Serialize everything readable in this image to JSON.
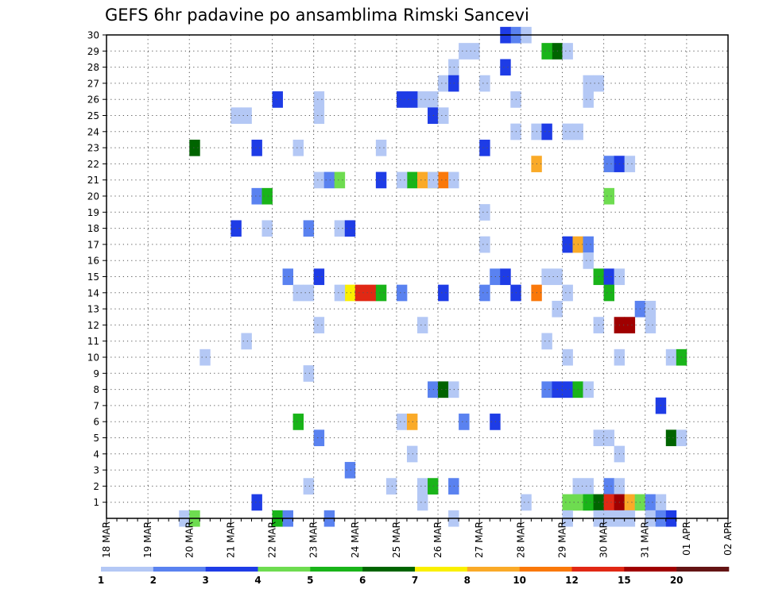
{
  "chart_data": {
    "type": "heatmap",
    "title": "GEFS 6hr padavine po ansamblima Rimski Sancevi",
    "xlabel": "",
    "ylabel": "",
    "x_steps_per_day": 4,
    "x_tick_labels": [
      "18 MAR",
      "19 MAR",
      "20 MAR",
      "21 MAR",
      "22 MAR",
      "23 MAR",
      "24 MAR",
      "25 MAR",
      "26 MAR",
      "27 MAR",
      "28 MAR",
      "29 MAR",
      "30 MAR",
      "31 MAR",
      "01 APR",
      "02 APR"
    ],
    "y_tick_labels": [
      "1",
      "2",
      "3",
      "4",
      "5",
      "6",
      "7",
      "8",
      "9",
      "10",
      "11",
      "12",
      "13",
      "14",
      "15",
      "16",
      "17",
      "18",
      "19",
      "20",
      "21",
      "22",
      "23",
      "24",
      "25",
      "26",
      "27",
      "28",
      "29",
      "30"
    ],
    "y_range": [
      0,
      30
    ],
    "grid": true,
    "legend_thresholds": [
      "1",
      "2",
      "3",
      "4",
      "5",
      "6",
      "7",
      "8",
      "10",
      "12",
      "15",
      "20"
    ],
    "legend_colors": [
      "#b4c8f5",
      "#5a82f0",
      "#1e3ce6",
      "#6edc50",
      "#19b419",
      "#006400",
      "#faf000",
      "#faaa28",
      "#fa780a",
      "#e12814",
      "#a00000",
      "#641414"
    ],
    "cells": [
      [
        27.75,
        30,
        1
      ],
      [
        28,
        30,
        0
      ],
      [
        27.5,
        30,
        2
      ],
      [
        26.5,
        29,
        0
      ],
      [
        28.75,
        29,
        5
      ],
      [
        29,
        29,
        0
      ],
      [
        26.75,
        29,
        0
      ],
      [
        28.5,
        29,
        4
      ],
      [
        26.25,
        28,
        0
      ],
      [
        27.5,
        28,
        2
      ],
      [
        26,
        27,
        0
      ],
      [
        27,
        27,
        0
      ],
      [
        26.25,
        27,
        2
      ],
      [
        29.75,
        27,
        0
      ],
      [
        29.5,
        27,
        0
      ],
      [
        25.75,
        26,
        0
      ],
      [
        25.5,
        26,
        0
      ],
      [
        25.25,
        26,
        2
      ],
      [
        25,
        26,
        2
      ],
      [
        23,
        26,
        0
      ],
      [
        22,
        26,
        2
      ],
      [
        27.75,
        26,
        0
      ],
      [
        29.5,
        26,
        0
      ],
      [
        21,
        25,
        0
      ],
      [
        25.75,
        25,
        2
      ],
      [
        26,
        25,
        0
      ],
      [
        21.25,
        25,
        0
      ],
      [
        23,
        25,
        0
      ],
      [
        27.75,
        24,
        0
      ],
      [
        28.25,
        24,
        0
      ],
      [
        28.5,
        24,
        2
      ],
      [
        29,
        24,
        0
      ],
      [
        29.25,
        24,
        0
      ],
      [
        24.5,
        23,
        0
      ],
      [
        20,
        23,
        5
      ],
      [
        21.5,
        23,
        2
      ],
      [
        22.5,
        23,
        0
      ],
      [
        27,
        23,
        2
      ],
      [
        28.25,
        22,
        7
      ],
      [
        30,
        22,
        1
      ],
      [
        30.25,
        22,
        2
      ],
      [
        30.5,
        22,
        0
      ],
      [
        24.5,
        21,
        2
      ],
      [
        25.25,
        21,
        4
      ],
      [
        25.5,
        21,
        7
      ],
      [
        25.75,
        21,
        6
      ],
      [
        26,
        21,
        8
      ],
      [
        26.25,
        21,
        0
      ],
      [
        23,
        21,
        0
      ],
      [
        23.25,
        21,
        1
      ],
      [
        23.5,
        21,
        3
      ],
      [
        25,
        21,
        0
      ],
      [
        25.75,
        21,
        0
      ],
      [
        21.5,
        20,
        1
      ],
      [
        21.75,
        20,
        4
      ],
      [
        30,
        20,
        3
      ],
      [
        27,
        19,
        0
      ],
      [
        21,
        18,
        2
      ],
      [
        21.75,
        18,
        0
      ],
      [
        22.75,
        18,
        1
      ],
      [
        23.5,
        18,
        0
      ],
      [
        23.75,
        18,
        2
      ],
      [
        29,
        17,
        2
      ],
      [
        29.25,
        17,
        7
      ],
      [
        29.5,
        17,
        1
      ],
      [
        27,
        17,
        0
      ],
      [
        29.5,
        16,
        0
      ],
      [
        27.25,
        15,
        1
      ],
      [
        27.5,
        15,
        2
      ],
      [
        29.75,
        15,
        4
      ],
      [
        30,
        15,
        2
      ],
      [
        30.25,
        15,
        0
      ],
      [
        28.5,
        15,
        0
      ],
      [
        28.75,
        15,
        0
      ],
      [
        22.25,
        15,
        1
      ],
      [
        23,
        15,
        2
      ],
      [
        23.75,
        14,
        6
      ],
      [
        24,
        14,
        9
      ],
      [
        24.25,
        14,
        9
      ],
      [
        24.5,
        14,
        4
      ],
      [
        25,
        14,
        1
      ],
      [
        26,
        14,
        2
      ],
      [
        27,
        14,
        1
      ],
      [
        27.75,
        14,
        2
      ],
      [
        28.25,
        14,
        8
      ],
      [
        29,
        14,
        0
      ],
      [
        30,
        14,
        4
      ],
      [
        23.5,
        14,
        0
      ],
      [
        22.5,
        14,
        0
      ],
      [
        22.75,
        14,
        0
      ],
      [
        28.75,
        13,
        0
      ],
      [
        30.25,
        12,
        10
      ],
      [
        30.5,
        12,
        10
      ],
      [
        31,
        12,
        0
      ],
      [
        30.75,
        13,
        1
      ],
      [
        31,
        13,
        0
      ],
      [
        23,
        12,
        0
      ],
      [
        25.5,
        12,
        0
      ],
      [
        29.75,
        12,
        0
      ],
      [
        21.25,
        11,
        0
      ],
      [
        28.5,
        11,
        0
      ],
      [
        29,
        10,
        0
      ],
      [
        31.5,
        10,
        0
      ],
      [
        31.75,
        10,
        4
      ],
      [
        30.25,
        10,
        0
      ],
      [
        20.25,
        10,
        0
      ],
      [
        22.75,
        9,
        0
      ],
      [
        25.75,
        8,
        1
      ],
      [
        26,
        8,
        5
      ],
      [
        26.25,
        8,
        0
      ],
      [
        28.5,
        8,
        1
      ],
      [
        28.75,
        8,
        2
      ],
      [
        29,
        8,
        2
      ],
      [
        29.25,
        8,
        4
      ],
      [
        29.5,
        8,
        0
      ],
      [
        31.25,
        7,
        2
      ],
      [
        22.5,
        6,
        4
      ],
      [
        25,
        6,
        0
      ],
      [
        25.25,
        6,
        7
      ],
      [
        26.5,
        6,
        1
      ],
      [
        27.25,
        6,
        2
      ],
      [
        23,
        5,
        1
      ],
      [
        29.75,
        5,
        0
      ],
      [
        30,
        5,
        0
      ],
      [
        31.5,
        5,
        5
      ],
      [
        31.75,
        5,
        0
      ],
      [
        25.25,
        4,
        0
      ],
      [
        30.25,
        4,
        0
      ],
      [
        23.75,
        3,
        1
      ],
      [
        22.75,
        2,
        0
      ],
      [
        24.75,
        2,
        0
      ],
      [
        25.5,
        2,
        0
      ],
      [
        25.75,
        2,
        4
      ],
      [
        26.25,
        2,
        1
      ],
      [
        29.25,
        2,
        0
      ],
      [
        29.5,
        2,
        0
      ],
      [
        30,
        2,
        1
      ],
      [
        30.25,
        2,
        0
      ],
      [
        21.5,
        1,
        2
      ],
      [
        25.5,
        1,
        0
      ],
      [
        28,
        1,
        0
      ],
      [
        29,
        1,
        3
      ],
      [
        29.25,
        1,
        3
      ],
      [
        29.5,
        1,
        4
      ],
      [
        29.75,
        1,
        5
      ],
      [
        30,
        1,
        9
      ],
      [
        30.25,
        1,
        10
      ],
      [
        30.5,
        1,
        7
      ],
      [
        30.75,
        1,
        3
      ],
      [
        31,
        1,
        1
      ],
      [
        31.25,
        1,
        0
      ],
      [
        22,
        0,
        4
      ],
      [
        22.25,
        0,
        1
      ],
      [
        23.25,
        0,
        1
      ],
      [
        26.25,
        0,
        0
      ],
      [
        29.75,
        0,
        0
      ],
      [
        30,
        0,
        0
      ],
      [
        30.25,
        0,
        0
      ],
      [
        30.5,
        0,
        0
      ],
      [
        31,
        0,
        0
      ],
      [
        31.25,
        0,
        1
      ],
      [
        31.5,
        0,
        2
      ],
      [
        29,
        0,
        0
      ],
      [
        19.75,
        0,
        0
      ],
      [
        20,
        0,
        3
      ]
    ]
  }
}
